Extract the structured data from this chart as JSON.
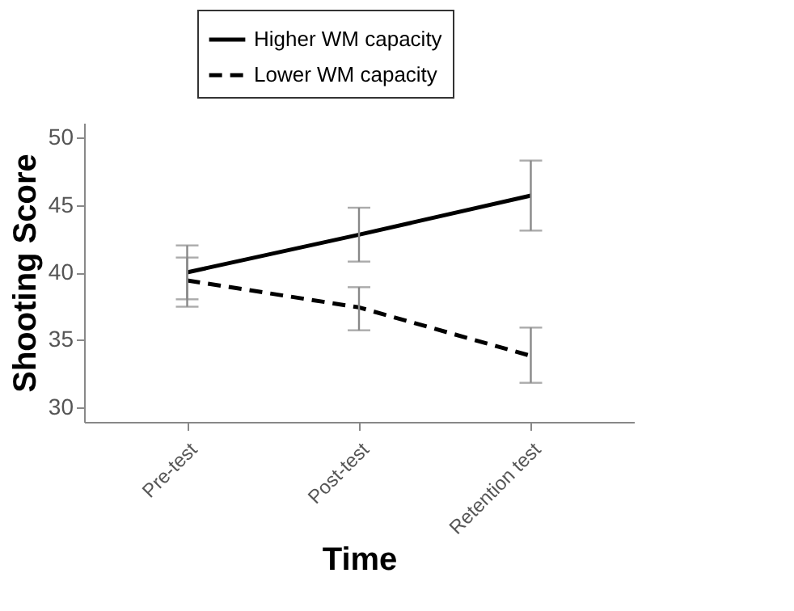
{
  "chart_data": {
    "type": "line",
    "xlabel": "Time",
    "ylabel": "Shooting Score",
    "categories": [
      "Pre-test",
      "Post-test",
      "Retention test"
    ],
    "series": [
      {
        "name": "Higher WM capacity",
        "color": "#000000",
        "line_style": "solid",
        "values": [
          40.0,
          42.8,
          45.7
        ],
        "errors": [
          [
            38.0,
            42.0
          ],
          [
            40.8,
            44.8
          ],
          [
            43.1,
            48.3
          ]
        ]
      },
      {
        "name": "Lower WM capacity",
        "color": "#000000",
        "line_style": "dashed",
        "values": [
          39.4,
          37.4,
          33.8
        ],
        "errors": [
          [
            37.45,
            41.1
          ],
          [
            35.7,
            38.9
          ],
          [
            31.8,
            35.9
          ]
        ]
      }
    ],
    "ylim": [
      28.9,
      51.1
    ],
    "yticks": [
      30,
      35,
      40,
      45,
      50
    ],
    "grid": false,
    "legend": "top",
    "marker": "none"
  }
}
